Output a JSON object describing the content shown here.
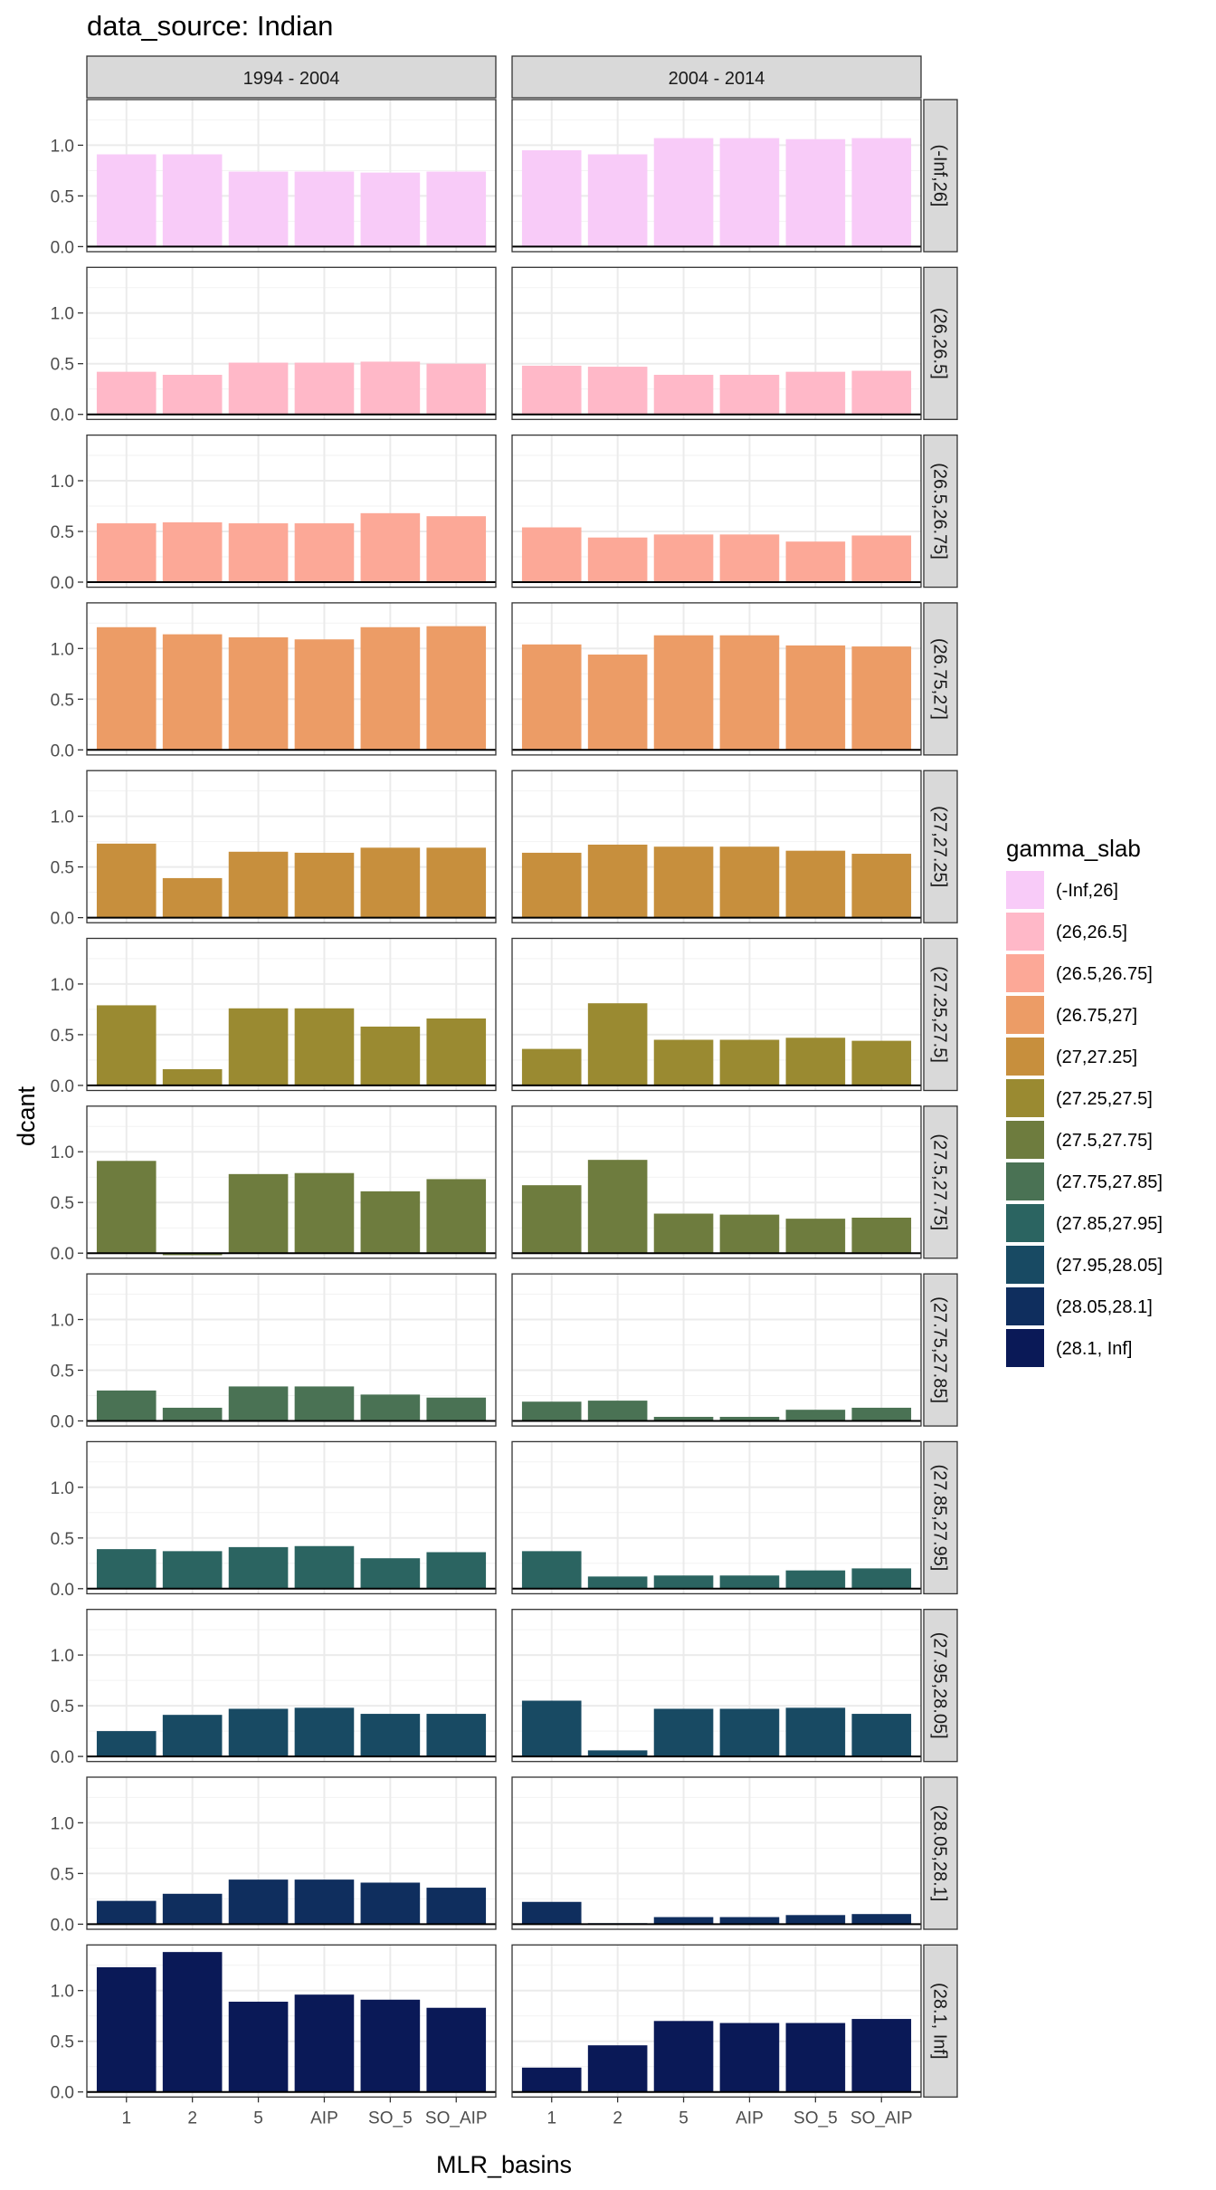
{
  "chart_data": {
    "type": "bar",
    "title": "data_source: Indian",
    "xlabel": "MLR_basins",
    "ylabel": "dcant",
    "ylim": [
      -0.05,
      1.45
    ],
    "yticks": [
      0.0,
      0.5,
      1.0
    ],
    "ytick_labels": [
      "0.0",
      "0.5",
      "1.0"
    ],
    "grid": true,
    "categories": [
      "1",
      "2",
      "5",
      "AIP",
      "SO_5",
      "SO_AIP"
    ],
    "columns": [
      "1994 - 2004",
      "2004 - 2014"
    ],
    "legend": {
      "title": "gamma_slab",
      "position": "right"
    },
    "panels": [
      {
        "slab": "(-Inf,26]",
        "color": "#F8CBF8",
        "values": [
          [
            0.91,
            0.91,
            0.74,
            0.74,
            0.73,
            0.74
          ],
          [
            0.95,
            0.91,
            1.07,
            1.07,
            1.06,
            1.07
          ]
        ]
      },
      {
        "slab": "(26,26.5]",
        "color": "#FFB8C8",
        "values": [
          [
            0.42,
            0.39,
            0.51,
            0.51,
            0.52,
            0.5
          ],
          [
            0.48,
            0.47,
            0.39,
            0.39,
            0.42,
            0.43
          ]
        ]
      },
      {
        "slab": "(26.5,26.75]",
        "color": "#FCA897",
        "values": [
          [
            0.58,
            0.59,
            0.58,
            0.58,
            0.68,
            0.65
          ],
          [
            0.54,
            0.44,
            0.47,
            0.47,
            0.4,
            0.46
          ]
        ]
      },
      {
        "slab": "(26.75,27]",
        "color": "#EC9C66",
        "values": [
          [
            1.21,
            1.14,
            1.11,
            1.09,
            1.21,
            1.22
          ],
          [
            1.04,
            0.94,
            1.13,
            1.13,
            1.03,
            1.02
          ]
        ]
      },
      {
        "slab": "(27,27.25]",
        "color": "#C78F3D",
        "values": [
          [
            0.73,
            0.39,
            0.65,
            0.64,
            0.69,
            0.69
          ],
          [
            0.64,
            0.72,
            0.7,
            0.7,
            0.66,
            0.63
          ]
        ]
      },
      {
        "slab": "(27.25,27.5]",
        "color": "#9A8A31",
        "values": [
          [
            0.79,
            0.16,
            0.76,
            0.76,
            0.58,
            0.66
          ],
          [
            0.36,
            0.81,
            0.45,
            0.45,
            0.47,
            0.44
          ]
        ]
      },
      {
        "slab": "(27.5,27.75]",
        "color": "#6E7C3E",
        "values": [
          [
            0.91,
            -0.02,
            0.78,
            0.79,
            0.61,
            0.73
          ],
          [
            0.67,
            0.92,
            0.39,
            0.38,
            0.34,
            0.35
          ]
        ]
      },
      {
        "slab": "(27.75,27.85]",
        "color": "#4A7254",
        "values": [
          [
            0.3,
            0.13,
            0.34,
            0.34,
            0.26,
            0.23
          ],
          [
            0.19,
            0.2,
            0.04,
            0.04,
            0.11,
            0.13
          ]
        ]
      },
      {
        "slab": "(27.85,27.95]",
        "color": "#2B6461",
        "values": [
          [
            0.39,
            0.37,
            0.41,
            0.42,
            0.3,
            0.36
          ],
          [
            0.37,
            0.12,
            0.13,
            0.13,
            0.18,
            0.2
          ]
        ]
      },
      {
        "slab": "(27.95,28.05]",
        "color": "#184A63",
        "values": [
          [
            0.25,
            0.41,
            0.47,
            0.48,
            0.42,
            0.42
          ],
          [
            0.55,
            0.06,
            0.47,
            0.47,
            0.48,
            0.42
          ]
        ]
      },
      {
        "slab": "(28.05,28.1]",
        "color": "#0F2E5E",
        "values": [
          [
            0.23,
            0.3,
            0.44,
            0.44,
            0.41,
            0.36
          ],
          [
            0.22,
            0.01,
            0.07,
            0.07,
            0.09,
            0.1
          ]
        ]
      },
      {
        "slab": "(28.1, Inf]",
        "color": "#0A1957",
        "values": [
          [
            1.23,
            1.38,
            0.89,
            0.96,
            0.91,
            0.83
          ],
          [
            0.24,
            0.46,
            0.7,
            0.68,
            0.68,
            0.72
          ]
        ]
      }
    ]
  }
}
